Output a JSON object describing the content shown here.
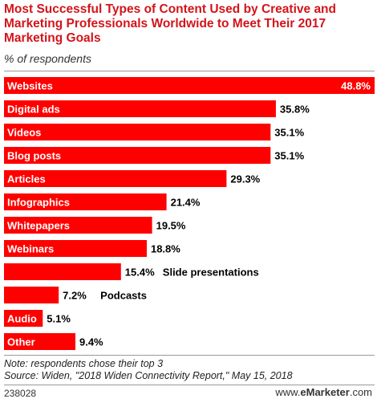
{
  "header": {
    "title": "Most Successful Types of Content Used by Creative and Marketing Professionals Worldwide to Meet Their 2017 Marketing Goals",
    "subtitle": "% of respondents"
  },
  "chart_data": {
    "type": "bar",
    "orientation": "horizontal",
    "title": "Most Successful Types of Content Used by Creative and Marketing Professionals Worldwide to Meet Their 2017 Marketing Goals",
    "subtitle": "% of respondents",
    "categories": [
      "Websites",
      "Digital ads",
      "Videos",
      "Blog posts",
      "Articles",
      "Infographics",
      "Whitepapers",
      "Webinars",
      "Slide presentations",
      "Podcasts",
      "Audio",
      "Other"
    ],
    "values": [
      48.8,
      35.8,
      35.1,
      35.1,
      29.3,
      21.4,
      19.5,
      18.8,
      15.4,
      7.2,
      5.1,
      9.4
    ],
    "value_labels": [
      "48.8%",
      "35.8%",
      "35.1%",
      "35.1%",
      "29.3%",
      "21.4%",
      "19.5%",
      "18.8%",
      "15.4%",
      "7.2%",
      "5.1%",
      "9.4%"
    ],
    "xlim": [
      0,
      48.8
    ],
    "bar_color": "#ff0000",
    "grid": false,
    "legend": "none"
  },
  "footer": {
    "note": "Note: respondents chose their top 3",
    "source": "Source: Widen, \"2018 Widen Connectivity Report,\" May 15, 2018",
    "chart_id": "238028",
    "brand_prefix": "www.",
    "brand_name": "eMarketer",
    "brand_suffix": ".com"
  },
  "colors": {
    "title": "#d3141a",
    "bar": "#ff0000",
    "text": "#000000"
  }
}
